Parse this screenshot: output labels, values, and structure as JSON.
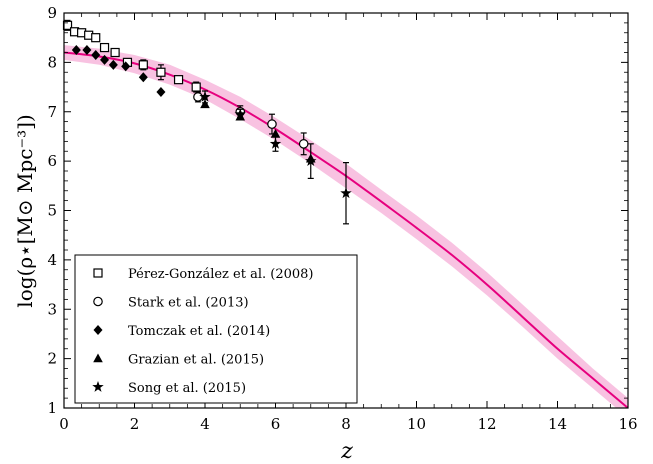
{
  "chart_data": {
    "type": "scatter",
    "xlabel": "z",
    "ylabel": "log(ρ⋆[M⊙ Mpc⁻³])",
    "xlim": [
      0,
      16
    ],
    "ylim": [
      1,
      9
    ],
    "xticks": [
      0,
      2,
      4,
      6,
      8,
      10,
      12,
      14,
      16
    ],
    "yticks": [
      1,
      2,
      3,
      4,
      5,
      6,
      7,
      8,
      9
    ],
    "xtick_labels": [
      "0",
      "2",
      "4",
      "6",
      "8",
      "10",
      "12",
      "14",
      "16"
    ],
    "ytick_labels": [
      "1",
      "2",
      "3",
      "4",
      "5",
      "6",
      "7",
      "8",
      "9"
    ],
    "grid": false,
    "legend_position": "lower-left",
    "model": {
      "color": "#e6007e",
      "band_color": "#f6b3d9",
      "x": [
        0,
        1,
        2,
        3,
        4,
        5,
        6,
        7,
        8,
        9,
        10,
        11,
        12,
        13,
        14,
        15,
        16
      ],
      "y": [
        8.2,
        8.12,
        7.98,
        7.75,
        7.45,
        7.08,
        6.65,
        6.18,
        5.7,
        5.18,
        4.65,
        4.1,
        3.5,
        2.85,
        2.2,
        1.6,
        1.0
      ],
      "y_low": [
        8.05,
        7.95,
        7.78,
        7.55,
        7.25,
        6.85,
        6.42,
        5.95,
        5.45,
        4.95,
        4.42,
        3.87,
        3.28,
        2.65,
        2.0,
        1.4,
        0.8
      ],
      "y_high": [
        8.35,
        8.28,
        8.15,
        7.95,
        7.65,
        7.3,
        6.88,
        6.42,
        5.95,
        5.42,
        4.9,
        4.35,
        3.75,
        3.1,
        2.45,
        1.8,
        1.2
      ]
    },
    "series": [
      {
        "name": "Pérez-González et al. (2008)",
        "marker": "square-open",
        "points": [
          {
            "x": 0.1,
            "y": 8.75,
            "err": 0.1
          },
          {
            "x": 0.3,
            "y": 8.62
          },
          {
            "x": 0.5,
            "y": 8.6
          },
          {
            "x": 0.7,
            "y": 8.55
          },
          {
            "x": 0.9,
            "y": 8.5
          },
          {
            "x": 1.15,
            "y": 8.3
          },
          {
            "x": 1.45,
            "y": 8.2
          },
          {
            "x": 1.8,
            "y": 8.0
          },
          {
            "x": 2.25,
            "y": 7.95,
            "err": 0.1
          },
          {
            "x": 2.75,
            "y": 7.8,
            "err": 0.15
          },
          {
            "x": 3.25,
            "y": 7.65
          },
          {
            "x": 3.75,
            "y": 7.5,
            "err": 0.1
          }
        ]
      },
      {
        "name": "Stark et al. (2013)",
        "marker": "circle-open",
        "points": [
          {
            "x": 3.8,
            "y": 7.3,
            "err": 0.1
          },
          {
            "x": 5.0,
            "y": 7.0,
            "err": 0.12
          },
          {
            "x": 5.9,
            "y": 6.75,
            "err": 0.2
          },
          {
            "x": 6.8,
            "y": 6.35,
            "err": 0.22
          }
        ]
      },
      {
        "name": "Tomczak et al. (2014)",
        "marker": "diamond",
        "points": [
          {
            "x": 0.35,
            "y": 8.25
          },
          {
            "x": 0.65,
            "y": 8.25
          },
          {
            "x": 0.9,
            "y": 8.15
          },
          {
            "x": 1.15,
            "y": 8.05
          },
          {
            "x": 1.4,
            "y": 7.95
          },
          {
            "x": 1.75,
            "y": 7.92
          },
          {
            "x": 2.25,
            "y": 7.7
          },
          {
            "x": 2.75,
            "y": 7.4
          }
        ]
      },
      {
        "name": "Grazian et al. (2015)",
        "marker": "triangle",
        "points": [
          {
            "x": 4.0,
            "y": 7.15
          },
          {
            "x": 5.0,
            "y": 6.9
          },
          {
            "x": 6.0,
            "y": 6.55
          },
          {
            "x": 7.0,
            "y": 6.05
          }
        ]
      },
      {
        "name": "Song et al. (2015)",
        "marker": "star",
        "points": [
          {
            "x": 4.0,
            "y": 7.3,
            "err": 0.12
          },
          {
            "x": 5.0,
            "y": 6.95,
            "err": 0.1
          },
          {
            "x": 6.0,
            "y": 6.35,
            "err": 0.15
          },
          {
            "x": 7.0,
            "y": 6.0,
            "err": 0.35
          },
          {
            "x": 8.0,
            "y": 5.35,
            "err": 0.62
          }
        ]
      }
    ]
  }
}
